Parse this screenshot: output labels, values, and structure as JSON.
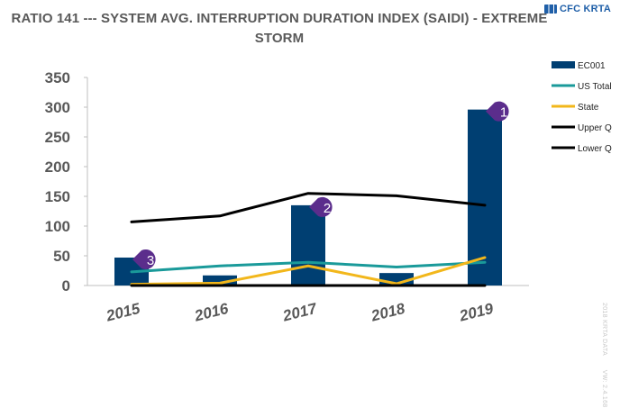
{
  "title_line1": "RATIO 141 --- SYSTEM AVG. INTERRUPTION DURATION INDEX (SAIDI) - EXTREME",
  "title_line2": "STORM",
  "logo_text": "CFC KRTA",
  "watermark": [
    "2018 KRTA DATA",
    "VW: 2.4.168"
  ],
  "colors": {
    "EC001": "#003f72",
    "US Total": "#1a9a9a",
    "State": "#f2b71b",
    "Upper Q": "#000000",
    "Lower Q": "#000000",
    "callout": "#5b2d8c"
  },
  "chart_data": {
    "type": "bar",
    "title": "RATIO 141 --- SYSTEM AVG. INTERRUPTION DURATION INDEX (SAIDI) - EXTREME STORM",
    "categories": [
      "2015",
      "2016",
      "2017",
      "2018",
      "2019"
    ],
    "ylim": [
      0,
      350
    ],
    "yticks": [
      "0",
      "50",
      "100",
      "150",
      "200",
      "250",
      "300",
      "350"
    ],
    "grid": false,
    "legend_position": "right",
    "series": [
      {
        "name": "EC001",
        "type": "bar",
        "values": [
          47,
          17,
          135,
          21,
          296
        ]
      },
      {
        "name": "US Total",
        "type": "line",
        "values": [
          23,
          33,
          39,
          31,
          39
        ]
      },
      {
        "name": "State",
        "type": "line",
        "values": [
          2,
          4,
          33,
          3,
          47
        ]
      },
      {
        "name": "Upper Q",
        "type": "line",
        "values": [
          107,
          117,
          155,
          151,
          135
        ]
      },
      {
        "name": "Lower Q",
        "type": "line",
        "values": [
          0,
          0,
          0,
          0,
          0
        ]
      }
    ],
    "annotations": [
      {
        "label": "1",
        "category": "2019",
        "value": 296
      },
      {
        "label": "2",
        "category": "2017",
        "value": 135
      },
      {
        "label": "3",
        "category": "2015",
        "value": 47
      }
    ]
  }
}
